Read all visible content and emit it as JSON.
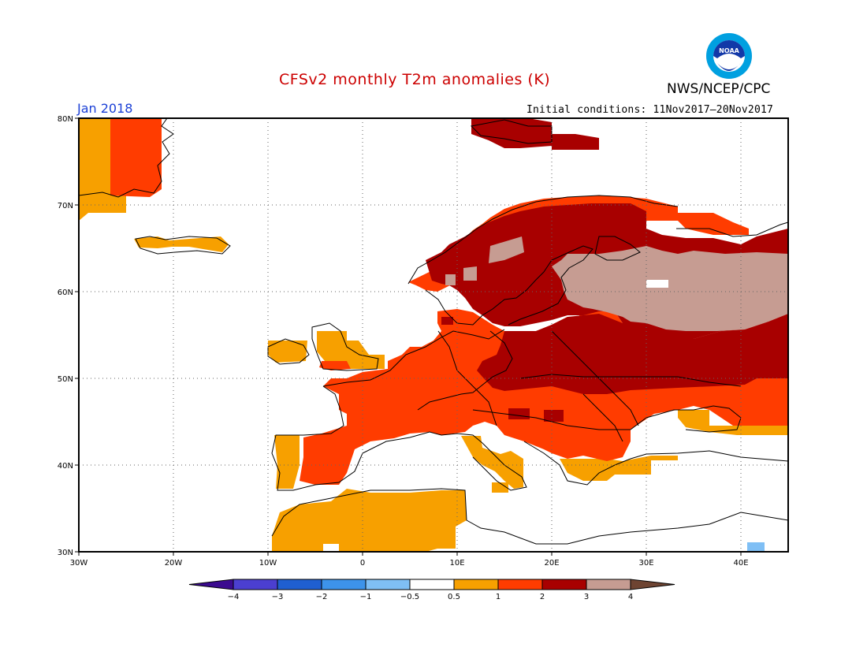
{
  "header": {
    "title": "CFSv2 monthly T2m anomalies (K)",
    "org": "NWS/NCEP/CPC",
    "month": "Jan 2018",
    "initial_conditions": "Initial conditions: 11Nov2017–20Nov2017"
  },
  "colors": {
    "title": "#cc0000",
    "month": "#1a3fd6",
    "land_outline": "#000000",
    "grid": "#555555"
  },
  "logo": {
    "name": "NOAA",
    "icon": "noaa-logo-icon"
  },
  "map": {
    "lon_range": [
      -30,
      45
    ],
    "lat_range": [
      30,
      80
    ],
    "lat_labels": [
      "80N",
      "70N",
      "60N",
      "50N",
      "40N",
      "30N"
    ],
    "lon_labels": [
      "30W",
      "20W",
      "10W",
      "0",
      "10E",
      "20E",
      "30E",
      "40E"
    ]
  },
  "colorbar": {
    "ticks": [
      "−4",
      "−3",
      "−2",
      "−1",
      "−0.5",
      "0.5",
      "1",
      "2",
      "3",
      "4"
    ],
    "colors": [
      "#3b0a8f",
      "#4b3fd0",
      "#1f5fd0",
      "#3d93ea",
      "#7fbff5",
      "#ffffff",
      "#f7a000",
      "#ff3c00",
      "#a80000",
      "#c69c92",
      "#6e4432"
    ]
  }
}
